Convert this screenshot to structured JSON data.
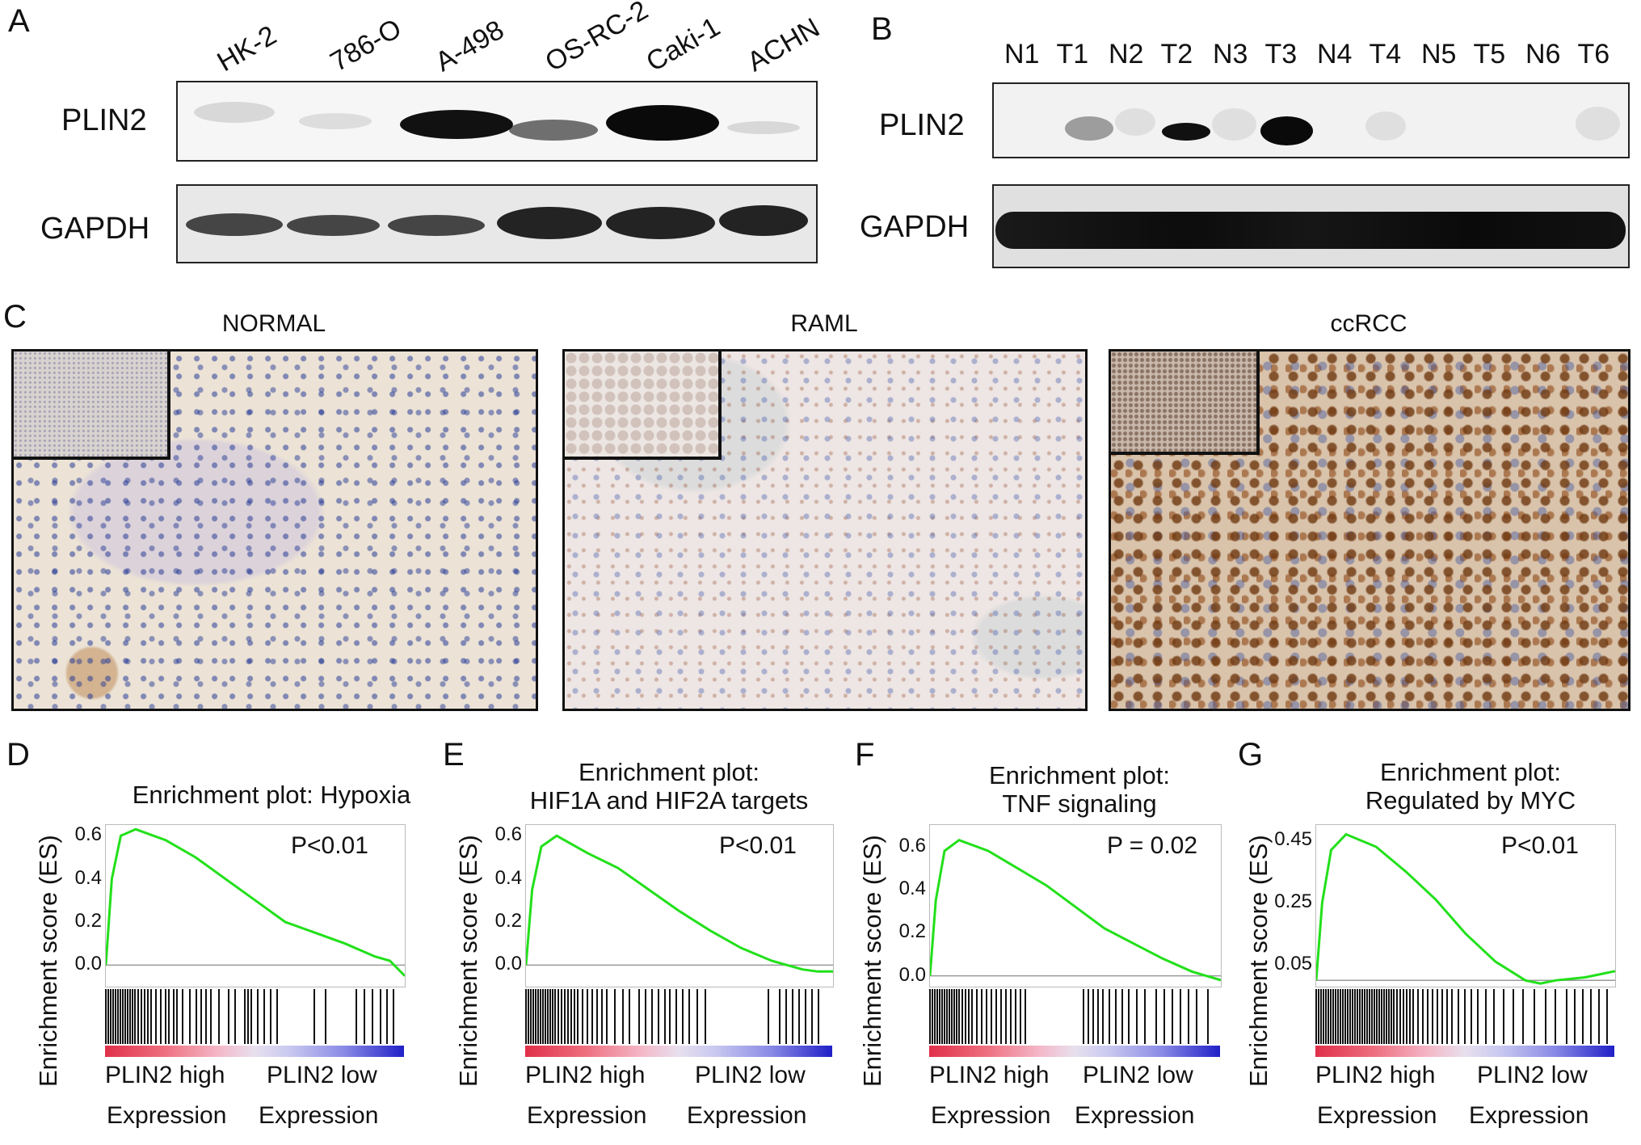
{
  "panels": {
    "A": {
      "letter": "A",
      "lanes": [
        "HK-2",
        "786-O",
        "A-498",
        "OS-RC-2",
        "Caki-1",
        "ACHN"
      ],
      "rows": [
        "PLIN2",
        "GAPDH"
      ]
    },
    "B": {
      "letter": "B",
      "lanes": [
        "N1",
        "T1",
        "N2",
        "T2",
        "N3",
        "T3",
        "N4",
        "T4",
        "N5",
        "T5",
        "N6",
        "T6"
      ],
      "rows": [
        "PLIN2",
        "GAPDH"
      ]
    },
    "C": {
      "letter": "C",
      "images": [
        {
          "title": "NORMAL"
        },
        {
          "title": "RAML"
        },
        {
          "title": "ccRCC"
        }
      ]
    }
  },
  "gsea": [
    {
      "letter": "D",
      "title_line1": "Enrichment plot: Hypoxia",
      "title_line2": "",
      "pvalue": "P<0.01",
      "ylabel": "Enrichment score (ES)",
      "yticks": [
        "0.6",
        "0.4",
        "0.2",
        "0.0"
      ],
      "xlabel_left_1": "PLIN2 high",
      "xlabel_left_2": "Expression",
      "xlabel_right_1": "PLIN2 low",
      "xlabel_right_2": "Expression"
    },
    {
      "letter": "E",
      "title_line1": "Enrichment plot:",
      "title_line2": "HIF1A and HIF2A targets",
      "pvalue": "P<0.01",
      "ylabel": "Enrichment score (ES)",
      "yticks": [
        "0.6",
        "0.4",
        "0.2",
        "0.0"
      ],
      "xlabel_left_1": "PLIN2 high",
      "xlabel_left_2": "Expression",
      "xlabel_right_1": "PLIN2 low",
      "xlabel_right_2": "Expression"
    },
    {
      "letter": "F",
      "title_line1": "Enrichment plot:",
      "title_line2": "TNF signaling",
      "pvalue": "P = 0.02",
      "ylabel": "Enrichment score (ES)",
      "yticks": [
        "0.6",
        "0.4",
        "0.2",
        "0.0"
      ],
      "xlabel_left_1": "PLIN2 high",
      "xlabel_left_2": "Expression",
      "xlabel_right_1": "PLIN2 low",
      "xlabel_right_2": "Expression"
    },
    {
      "letter": "G",
      "title_line1": "Enrichment plot:",
      "title_line2": "Regulated by MYC",
      "pvalue": "P<0.01",
      "ylabel": "Enrichment score (ES)",
      "yticks": [
        "0.45",
        "0.25",
        "0.05"
      ],
      "xlabel_left_1": "PLIN2 high",
      "xlabel_left_2": "Expression",
      "xlabel_right_1": "PLIN2 low",
      "xlabel_right_2": "Expression"
    }
  ],
  "chart_data": [
    {
      "type": "line",
      "title": "Enrichment plot: Hypoxia",
      "ylabel": "Enrichment score (ES)",
      "ylim": [
        -0.1,
        0.65
      ],
      "x": [
        0,
        2,
        5,
        10,
        20,
        30,
        40,
        50,
        60,
        70,
        80,
        90,
        95,
        100
      ],
      "y": [
        0.0,
        0.4,
        0.6,
        0.63,
        0.58,
        0.5,
        0.4,
        0.3,
        0.2,
        0.15,
        0.1,
        0.04,
        0.02,
        -0.05
      ]
    },
    {
      "type": "line",
      "title": "Enrichment plot: HIF1A and HIF2A targets",
      "ylabel": "Enrichment score (ES)",
      "ylim": [
        -0.1,
        0.65
      ],
      "x": [
        0,
        2,
        5,
        10,
        20,
        30,
        40,
        50,
        60,
        70,
        80,
        90,
        95,
        100
      ],
      "y": [
        0.0,
        0.35,
        0.55,
        0.6,
        0.52,
        0.45,
        0.35,
        0.25,
        0.16,
        0.08,
        0.02,
        -0.02,
        -0.03,
        -0.03
      ]
    },
    {
      "type": "line",
      "title": "Enrichment plot: TNF signaling",
      "ylabel": "Enrichment score (ES)",
      "ylim": [
        -0.05,
        0.7
      ],
      "x": [
        0,
        2,
        5,
        10,
        20,
        30,
        40,
        50,
        60,
        70,
        80,
        90,
        95,
        100
      ],
      "y": [
        0.0,
        0.35,
        0.58,
        0.63,
        0.58,
        0.5,
        0.42,
        0.32,
        0.22,
        0.15,
        0.08,
        0.02,
        0.0,
        -0.02
      ]
    },
    {
      "type": "line",
      "title": "Enrichment plot: Regulated by MYC",
      "ylabel": "Enrichment score (ES)",
      "ylim": [
        -0.02,
        0.5
      ],
      "x": [
        0,
        2,
        5,
        10,
        20,
        30,
        40,
        50,
        60,
        70,
        75,
        80,
        90,
        100
      ],
      "y": [
        0.0,
        0.25,
        0.42,
        0.47,
        0.43,
        0.35,
        0.26,
        0.15,
        0.06,
        0.0,
        -0.01,
        0.0,
        0.01,
        0.03
      ]
    }
  ]
}
